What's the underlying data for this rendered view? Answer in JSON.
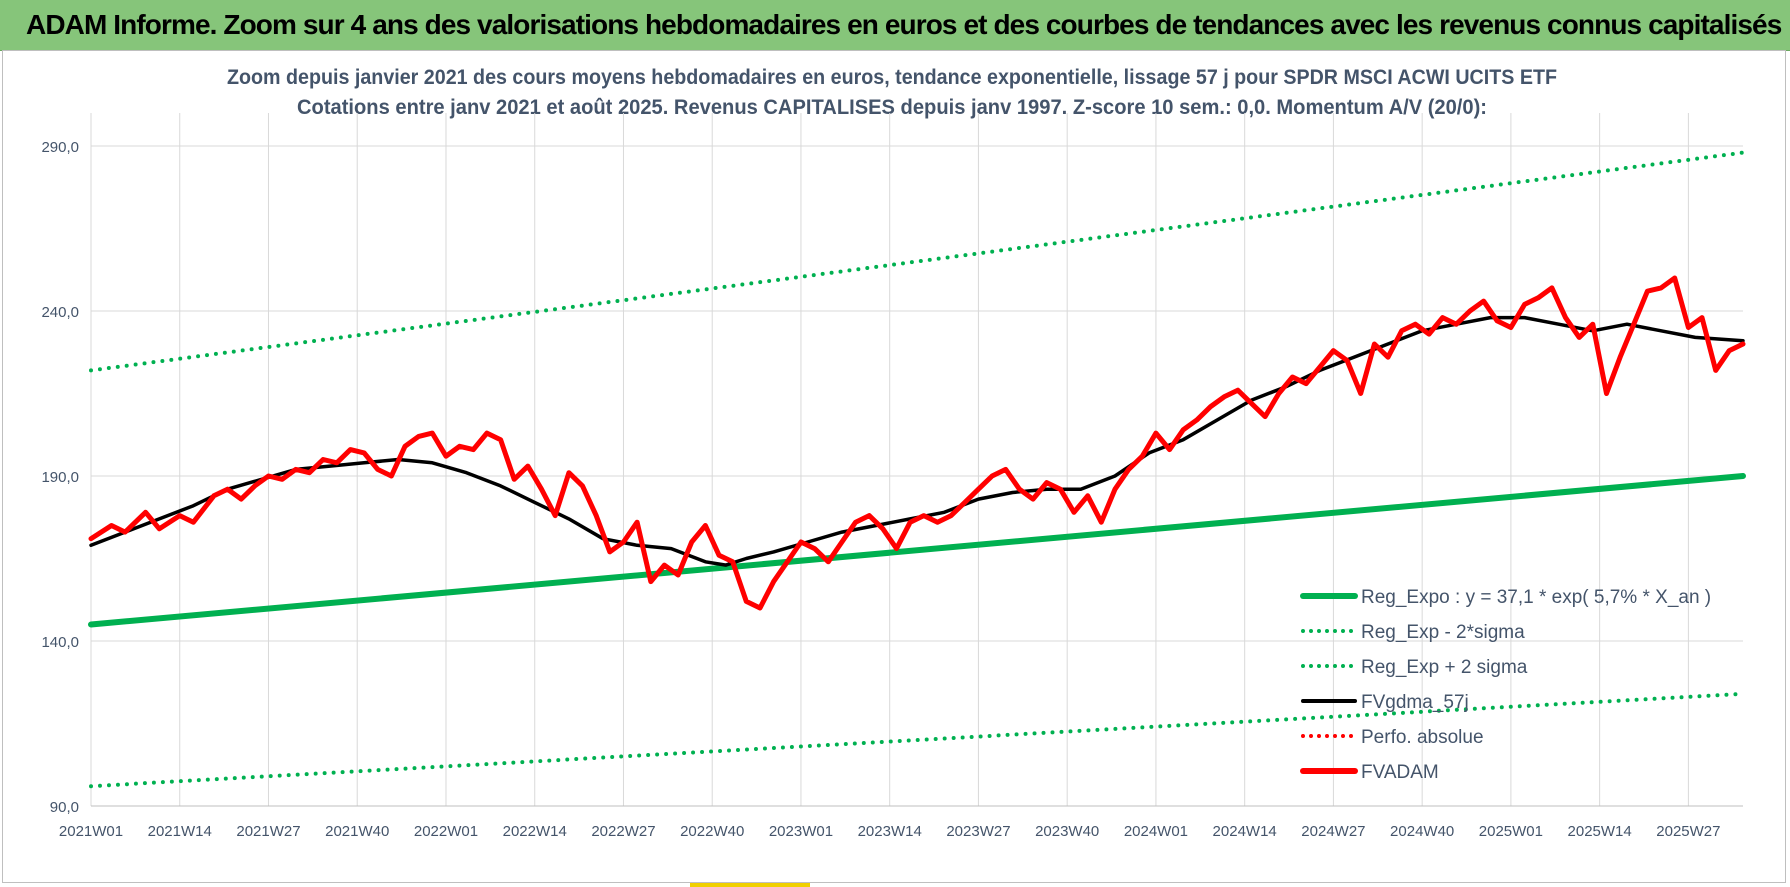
{
  "banner": {
    "title": "ADAM Informe. Zoom sur 4 ans des valorisations hebdomadaires en euros et des courbes de tendances avec les revenus connus capitalisés"
  },
  "colors": {
    "banner_bg": "#86c57a",
    "green": "#00b050",
    "black": "#000000",
    "red": "#ff0000",
    "grid": "#d9d9d9",
    "title_text": "#44546a",
    "axis_text": "#44546a"
  },
  "chart_data": {
    "type": "line",
    "title": "Zoom depuis janvier 2021 des cours moyens hebdomadaires en euros, tendance exponentielle, lissage 57 j pour SPDR MSCI ACWI UCITS ETF",
    "subtitle": "Cotations entre janv 2021 et août 2025. Revenus CAPITALISES depuis janv 1997. Z-score 10 sem.: 0,0. Momentum A/V (20/0):",
    "xlabel": "",
    "ylabel": "",
    "ylim": [
      90,
      300
    ],
    "yticks": [
      "90,0",
      "140,0",
      "190,0",
      "240,0",
      "290,0"
    ],
    "ytick_values": [
      90,
      140,
      190,
      240,
      290
    ],
    "x_tick_labels": [
      "2021W01",
      "2021W14",
      "2021W27",
      "2021W40",
      "2022W01",
      "2022W14",
      "2022W27",
      "2022W40",
      "2023W01",
      "2023W14",
      "2023W27",
      "2023W40",
      "2024W01",
      "2024W14",
      "2024W27",
      "2024W40",
      "2025W01",
      "2025W14",
      "2025W27"
    ],
    "x_tick_index": [
      0,
      13,
      26,
      39,
      52,
      65,
      78,
      91,
      104,
      117,
      130,
      143,
      156,
      169,
      182,
      195,
      208,
      221,
      234
    ],
    "n_weeks": 243,
    "grid": true,
    "legend_position": "bottom-right",
    "series": [
      {
        "name": "Reg_Expo : y = 37,1 * exp( 5,7% *  X_an )",
        "style": "solid-thick",
        "color": "#00b050",
        "points": [
          [
            0,
            145
          ],
          [
            242,
            190
          ]
        ]
      },
      {
        "name": "Reg_Exp - 2*sigma",
        "style": "dotted",
        "color": "#00b050",
        "points": [
          [
            0,
            96
          ],
          [
            242,
            124
          ]
        ]
      },
      {
        "name": "Reg_Exp + 2 sigma",
        "style": "dotted",
        "color": "#00b050",
        "points": [
          [
            0,
            222
          ],
          [
            242,
            288
          ]
        ]
      },
      {
        "name": "FVgdma_57j",
        "style": "solid",
        "color": "#000000",
        "points": [
          [
            0,
            169
          ],
          [
            5,
            173
          ],
          [
            10,
            177
          ],
          [
            15,
            181
          ],
          [
            20,
            186
          ],
          [
            25,
            189
          ],
          [
            30,
            192
          ],
          [
            35,
            193
          ],
          [
            40,
            194
          ],
          [
            45,
            195
          ],
          [
            50,
            194
          ],
          [
            55,
            191
          ],
          [
            60,
            187
          ],
          [
            65,
            182
          ],
          [
            70,
            177
          ],
          [
            75,
            171
          ],
          [
            80,
            169
          ],
          [
            85,
            168
          ],
          [
            90,
            164
          ],
          [
            93,
            163
          ],
          [
            96,
            165
          ],
          [
            100,
            167
          ],
          [
            105,
            170
          ],
          [
            110,
            173
          ],
          [
            115,
            175
          ],
          [
            120,
            177
          ],
          [
            125,
            179
          ],
          [
            130,
            183
          ],
          [
            135,
            185
          ],
          [
            140,
            186
          ],
          [
            145,
            186
          ],
          [
            150,
            190
          ],
          [
            155,
            197
          ],
          [
            160,
            201
          ],
          [
            165,
            207
          ],
          [
            170,
            213
          ],
          [
            175,
            217
          ],
          [
            180,
            222
          ],
          [
            185,
            226
          ],
          [
            190,
            230
          ],
          [
            195,
            234
          ],
          [
            200,
            236
          ],
          [
            205,
            238
          ],
          [
            210,
            238
          ],
          [
            215,
            236
          ],
          [
            220,
            234
          ],
          [
            225,
            236
          ],
          [
            230,
            234
          ],
          [
            235,
            232
          ],
          [
            242,
            231
          ]
        ]
      },
      {
        "name": "Perfo. absolue",
        "style": "dotted",
        "color": "#ff0000",
        "points": []
      },
      {
        "name": "FVADAM",
        "style": "solid-thick",
        "color": "#ff0000",
        "points": [
          [
            0,
            171
          ],
          [
            3,
            175
          ],
          [
            5,
            173
          ],
          [
            8,
            179
          ],
          [
            10,
            174
          ],
          [
            13,
            178
          ],
          [
            15,
            176
          ],
          [
            18,
            184
          ],
          [
            20,
            186
          ],
          [
            22,
            183
          ],
          [
            24,
            187
          ],
          [
            26,
            190
          ],
          [
            28,
            189
          ],
          [
            30,
            192
          ],
          [
            32,
            191
          ],
          [
            34,
            195
          ],
          [
            36,
            194
          ],
          [
            38,
            198
          ],
          [
            40,
            197
          ],
          [
            42,
            192
          ],
          [
            44,
            190
          ],
          [
            46,
            199
          ],
          [
            48,
            202
          ],
          [
            50,
            203
          ],
          [
            52,
            196
          ],
          [
            54,
            199
          ],
          [
            56,
            198
          ],
          [
            58,
            203
          ],
          [
            60,
            201
          ],
          [
            62,
            189
          ],
          [
            64,
            193
          ],
          [
            66,
            186
          ],
          [
            68,
            178
          ],
          [
            70,
            191
          ],
          [
            72,
            187
          ],
          [
            74,
            178
          ],
          [
            76,
            167
          ],
          [
            78,
            170
          ],
          [
            80,
            176
          ],
          [
            82,
            158
          ],
          [
            84,
            163
          ],
          [
            86,
            160
          ],
          [
            88,
            170
          ],
          [
            90,
            175
          ],
          [
            92,
            166
          ],
          [
            94,
            164
          ],
          [
            96,
            152
          ],
          [
            98,
            150
          ],
          [
            100,
            158
          ],
          [
            102,
            164
          ],
          [
            104,
            170
          ],
          [
            106,
            168
          ],
          [
            108,
            164
          ],
          [
            110,
            170
          ],
          [
            112,
            176
          ],
          [
            114,
            178
          ],
          [
            116,
            174
          ],
          [
            118,
            168
          ],
          [
            120,
            176
          ],
          [
            122,
            178
          ],
          [
            124,
            176
          ],
          [
            126,
            178
          ],
          [
            128,
            182
          ],
          [
            130,
            186
          ],
          [
            132,
            190
          ],
          [
            134,
            192
          ],
          [
            136,
            186
          ],
          [
            138,
            183
          ],
          [
            140,
            188
          ],
          [
            142,
            186
          ],
          [
            144,
            179
          ],
          [
            146,
            184
          ],
          [
            148,
            176
          ],
          [
            150,
            186
          ],
          [
            152,
            192
          ],
          [
            154,
            196
          ],
          [
            156,
            203
          ],
          [
            158,
            198
          ],
          [
            160,
            204
          ],
          [
            162,
            207
          ],
          [
            164,
            211
          ],
          [
            166,
            214
          ],
          [
            168,
            216
          ],
          [
            170,
            212
          ],
          [
            172,
            208
          ],
          [
            174,
            215
          ],
          [
            176,
            220
          ],
          [
            178,
            218
          ],
          [
            180,
            223
          ],
          [
            182,
            228
          ],
          [
            184,
            225
          ],
          [
            186,
            215
          ],
          [
            188,
            230
          ],
          [
            190,
            226
          ],
          [
            192,
            234
          ],
          [
            194,
            236
          ],
          [
            196,
            233
          ],
          [
            198,
            238
          ],
          [
            200,
            236
          ],
          [
            202,
            240
          ],
          [
            204,
            243
          ],
          [
            206,
            237
          ],
          [
            208,
            235
          ],
          [
            210,
            242
          ],
          [
            212,
            244
          ],
          [
            214,
            247
          ],
          [
            216,
            238
          ],
          [
            218,
            232
          ],
          [
            220,
            236
          ],
          [
            222,
            215
          ],
          [
            224,
            226
          ],
          [
            226,
            236
          ],
          [
            228,
            246
          ],
          [
            230,
            247
          ],
          [
            232,
            250
          ],
          [
            234,
            235
          ],
          [
            236,
            238
          ],
          [
            238,
            222
          ],
          [
            240,
            228
          ],
          [
            242,
            230
          ]
        ]
      }
    ]
  }
}
